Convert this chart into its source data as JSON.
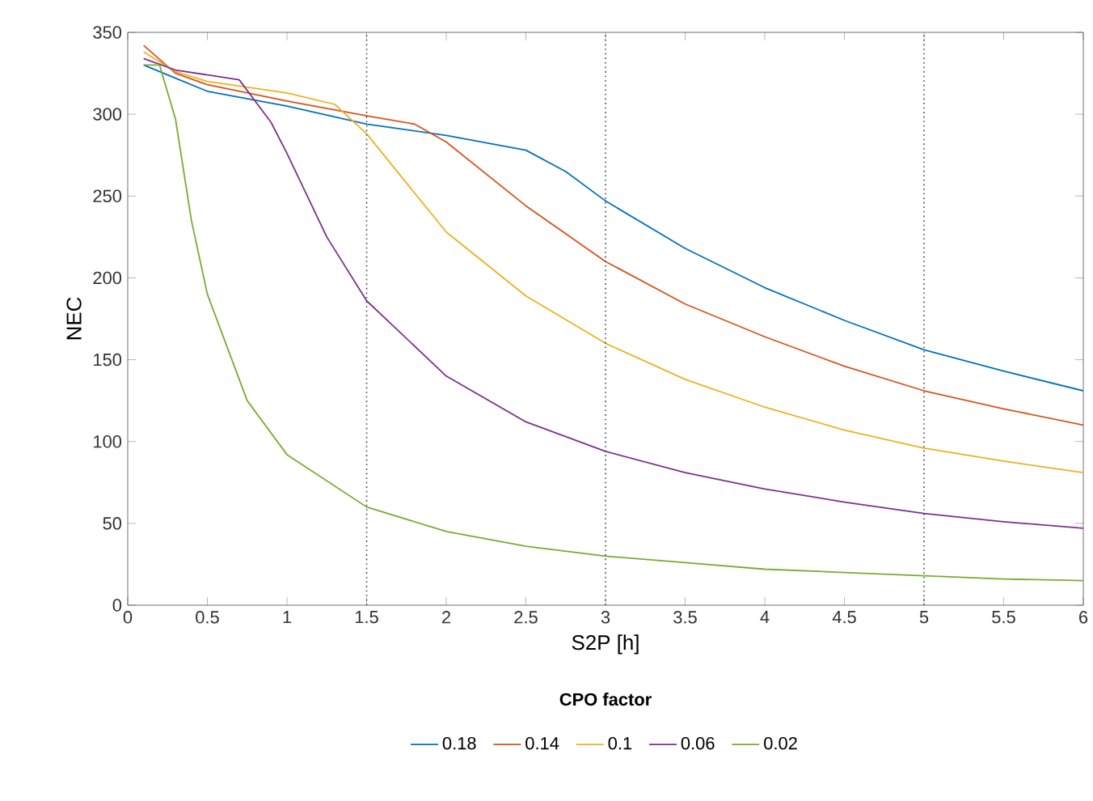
{
  "chart_data": {
    "type": "line",
    "xlabel": "S2P [h]",
    "ylabel": "NEC",
    "legend_title": "CPO factor",
    "legend": "bottom",
    "xlim": [
      0,
      6
    ],
    "ylim": [
      0,
      350
    ],
    "xticks": [
      0,
      0.5,
      1,
      1.5,
      2,
      2.5,
      3,
      3.5,
      4,
      4.5,
      5,
      5.5,
      6
    ],
    "yticks": [
      0,
      50,
      100,
      150,
      200,
      250,
      300,
      350
    ],
    "ref_lines": [
      {
        "axis": "x",
        "value": 1.5,
        "color": "#404040",
        "line_style": "dotted"
      },
      {
        "axis": "x",
        "value": 3,
        "color": "#404040",
        "line_style": "dotted"
      },
      {
        "axis": "x",
        "value": 5,
        "color": "#404040",
        "line_style": "dotted"
      }
    ],
    "series": [
      {
        "name": "0.18",
        "color": "#0072bd",
        "x": [
          0.1,
          0.3,
          0.5,
          1,
          1.5,
          2,
          2.5,
          2.75,
          3,
          3.5,
          4,
          4.5,
          5,
          5.5,
          6
        ],
        "values": [
          330,
          322,
          314,
          305,
          294,
          287,
          278,
          265,
          247,
          218,
          194,
          174,
          156,
          143,
          131
        ]
      },
      {
        "name": "0.14",
        "color": "#d95319",
        "x": [
          0.1,
          0.3,
          0.5,
          1,
          1.5,
          1.8,
          2,
          2.5,
          3,
          3.5,
          4,
          4.5,
          5,
          5.5,
          6
        ],
        "values": [
          342,
          325,
          318,
          308,
          299,
          294,
          283,
          244,
          210,
          184,
          164,
          146,
          131,
          120,
          110
        ]
      },
      {
        "name": "0.1",
        "color": "#edb120",
        "x": [
          0.1,
          0.3,
          0.5,
          1,
          1.3,
          1.5,
          2,
          2.5,
          3,
          3.5,
          4,
          4.5,
          5,
          5.5,
          6
        ],
        "values": [
          338,
          326,
          320,
          313,
          306,
          288,
          228,
          189,
          160,
          138,
          121,
          107,
          96,
          88,
          81
        ]
      },
      {
        "name": "0.06",
        "color": "#7e2f8e",
        "x": [
          0.1,
          0.3,
          0.7,
          0.9,
          1,
          1.25,
          1.5,
          2,
          2.5,
          3,
          3.5,
          4,
          4.5,
          5,
          5.5,
          6
        ],
        "values": [
          334,
          327,
          321,
          295,
          276,
          225,
          186,
          140,
          112,
          94,
          81,
          71,
          63,
          56,
          51,
          47
        ]
      },
      {
        "name": "0.02",
        "color": "#77ac30",
        "x": [
          0.1,
          0.2,
          0.3,
          0.4,
          0.5,
          0.75,
          1,
          1.5,
          2,
          2.5,
          3,
          3.5,
          4,
          4.5,
          5,
          5.5,
          6
        ],
        "values": [
          330,
          330,
          297,
          235,
          190,
          125,
          92,
          60,
          45,
          36,
          30,
          26,
          22,
          20,
          18,
          16,
          15
        ]
      }
    ]
  }
}
